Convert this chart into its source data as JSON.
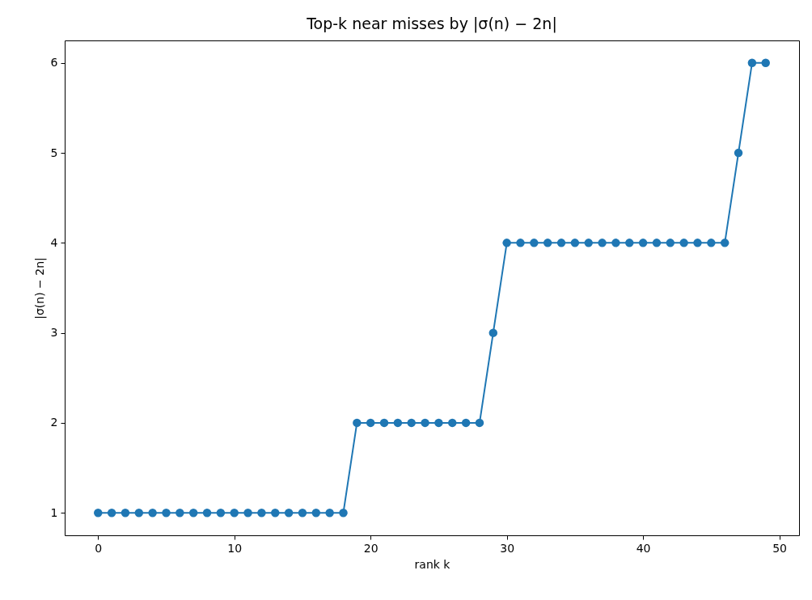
{
  "chart_data": {
    "type": "line",
    "title": "Top-k near misses by |σ(n) − 2n|",
    "xlabel": "rank k",
    "ylabel": "|σ(n) − 2n|",
    "x": [
      0,
      1,
      2,
      3,
      4,
      5,
      6,
      7,
      8,
      9,
      10,
      11,
      12,
      13,
      14,
      15,
      16,
      17,
      18,
      19,
      20,
      21,
      22,
      23,
      24,
      25,
      26,
      27,
      28,
      29,
      30,
      31,
      32,
      33,
      34,
      35,
      36,
      37,
      38,
      39,
      40,
      41,
      42,
      43,
      44,
      45,
      46,
      47,
      48,
      49
    ],
    "series": [
      {
        "color": "#1f77b4",
        "values": [
          1,
          1,
          1,
          1,
          1,
          1,
          1,
          1,
          1,
          1,
          1,
          1,
          1,
          1,
          1,
          1,
          1,
          1,
          1,
          2,
          2,
          2,
          2,
          2,
          2,
          2,
          2,
          2,
          2,
          3,
          4,
          4,
          4,
          4,
          4,
          4,
          4,
          4,
          4,
          4,
          4,
          4,
          4,
          4,
          4,
          4,
          4,
          5,
          6,
          6
        ]
      }
    ],
    "xlim": [
      -2.45,
      51.45
    ],
    "xticks": [
      0,
      10,
      20,
      30,
      40,
      50
    ],
    "ylim": [
      0.75,
      6.25
    ],
    "yticks": [
      1,
      2,
      3,
      4,
      5,
      6
    ],
    "grid": false,
    "marker": "circle",
    "line_style": "solid"
  }
}
